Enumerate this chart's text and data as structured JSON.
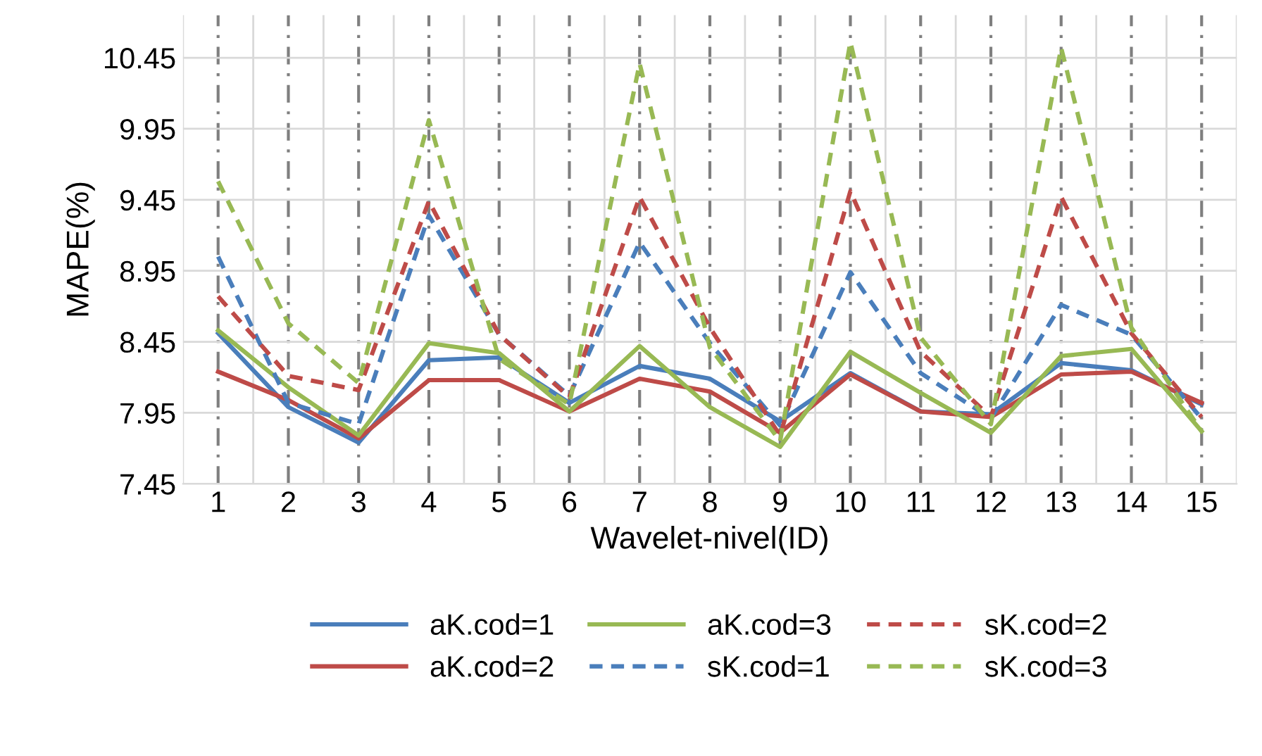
{
  "chart_data": {
    "type": "line",
    "xlabel": "Wavelet-nivel(ID)",
    "ylabel": "MAPE(%)",
    "categories": [
      "1",
      "2",
      "3",
      "4",
      "5",
      "6",
      "7",
      "8",
      "9",
      "10",
      "11",
      "12",
      "13",
      "14",
      "15"
    ],
    "ylim": [
      7.45,
      10.75
    ],
    "yticks": [
      7.45,
      7.95,
      8.45,
      8.95,
      9.45,
      9.95,
      10.45
    ],
    "grid": true,
    "legend": "bottom",
    "marker": "none",
    "series": [
      {
        "name": "aK.cod=1",
        "color": "#4a7ebb",
        "line_style": "solid",
        "values": [
          8.51,
          7.99,
          7.74,
          8.32,
          8.34,
          8.02,
          8.28,
          8.19,
          7.89,
          8.23,
          7.96,
          7.94,
          8.3,
          8.25,
          8.01
        ]
      },
      {
        "name": "aK.cod=2",
        "color": "#be4b48",
        "line_style": "solid",
        "values": [
          8.24,
          8.04,
          7.77,
          8.18,
          8.18,
          7.96,
          8.19,
          8.1,
          7.81,
          8.22,
          7.96,
          7.92,
          8.22,
          8.24,
          8.02
        ]
      },
      {
        "name": "aK.cod=3",
        "color": "#98b954",
        "line_style": "solid",
        "values": [
          8.53,
          8.13,
          7.79,
          8.44,
          8.37,
          7.96,
          8.42,
          7.99,
          7.71,
          8.38,
          8.09,
          7.81,
          8.35,
          8.4,
          7.82
        ]
      },
      {
        "name": "sK.cod=1",
        "color": "#4a7ebb",
        "line_style": "dashed",
        "values": [
          9.05,
          8.02,
          7.87,
          9.34,
          8.5,
          8.07,
          9.15,
          8.44,
          7.86,
          8.94,
          8.23,
          7.91,
          8.71,
          8.5,
          7.91
        ]
      },
      {
        "name": "sK.cod=2",
        "color": "#be4b48",
        "line_style": "dashed",
        "values": [
          8.77,
          8.21,
          8.11,
          9.44,
          8.5,
          8.06,
          9.47,
          8.55,
          7.79,
          9.51,
          8.38,
          7.92,
          9.47,
          8.51,
          7.92
        ]
      },
      {
        "name": "sK.cod=3",
        "color": "#98b954",
        "line_style": "dashed",
        "values": [
          9.58,
          8.58,
          8.16,
          10.01,
          8.33,
          8.01,
          10.41,
          8.41,
          7.75,
          10.56,
          8.48,
          7.87,
          10.52,
          8.55,
          7.82
        ]
      }
    ]
  }
}
